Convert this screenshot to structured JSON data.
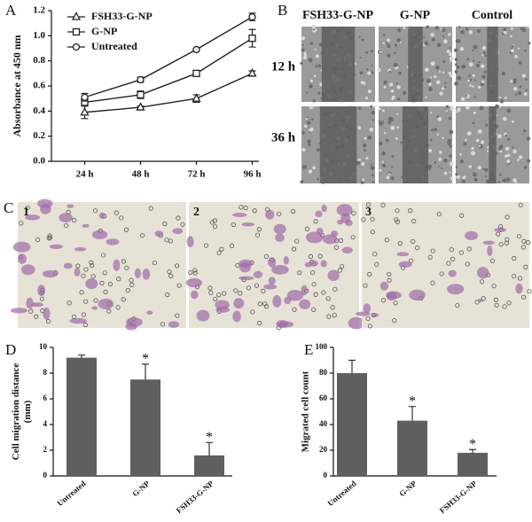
{
  "figure": {
    "panels": [
      "A",
      "B",
      "C",
      "D",
      "E"
    ],
    "scratch_columns": [
      "FSH33-G-NP",
      "G-NP",
      "Control"
    ],
    "scratch_rows": [
      "12 h",
      "36 h"
    ],
    "transwell_images": [
      "1",
      "2",
      "3"
    ]
  },
  "chart_data": [
    {
      "type": "line",
      "ylabel": [
        "Absorbance at 450 nm"
      ],
      "categories": [
        "24 h",
        "48 h",
        "72 h",
        "96 h"
      ],
      "series": [
        {
          "name": "FSH33-G-NP",
          "marker": "triangle",
          "color": "#222",
          "values": [
            0.39,
            0.43,
            0.5,
            0.7
          ],
          "errors": [
            0.05,
            0.01,
            0.03,
            0.02
          ]
        },
        {
          "name": "G-NP",
          "marker": "square",
          "color": "#222",
          "values": [
            0.47,
            0.53,
            0.7,
            0.98
          ],
          "errors": [
            0.03,
            0.03,
            0.01,
            0.07
          ]
        },
        {
          "name": "Untreated",
          "marker": "circle",
          "color": "#222",
          "values": [
            0.51,
            0.65,
            0.89,
            1.15
          ],
          "errors": [
            0.03,
            0.02,
            0.01,
            0.03
          ]
        }
      ],
      "ylim": [
        0,
        1.2
      ],
      "yticks": [
        {
          "value": 0,
          "label": "0.0"
        },
        0.2,
        0.4,
        0.6,
        0.8,
        {
          "value": 1,
          "label": "1.0"
        },
        1.2
      ],
      "legend": "upper left"
    },
    {
      "type": "bar",
      "ylabel": [
        "Cell migration distance",
        "(mm)"
      ],
      "categories": [
        "Untreated",
        "G-NP",
        "FSH33-G-NP"
      ],
      "values": [
        9.2,
        7.5,
        1.6
      ],
      "errors": [
        0.2,
        1.2,
        1.0
      ],
      "significance": [
        null,
        "*",
        "*"
      ],
      "color": "#5f5f5f",
      "ylim": [
        0,
        10
      ],
      "yticks": [
        0,
        2,
        4,
        6,
        8,
        10
      ]
    },
    {
      "type": "bar",
      "ylabel": [
        "Migrated cell count"
      ],
      "categories": [
        "Untreated",
        "G-NP",
        "FSH33-G-NP"
      ],
      "values": [
        80,
        43,
        18
      ],
      "errors": [
        10,
        11,
        2.5
      ],
      "significance": [
        null,
        "*",
        "*"
      ],
      "color": "#5f5f5f",
      "ylim": [
        0,
        100
      ],
      "yticks": [
        0,
        20,
        40,
        60,
        80,
        100
      ]
    }
  ]
}
